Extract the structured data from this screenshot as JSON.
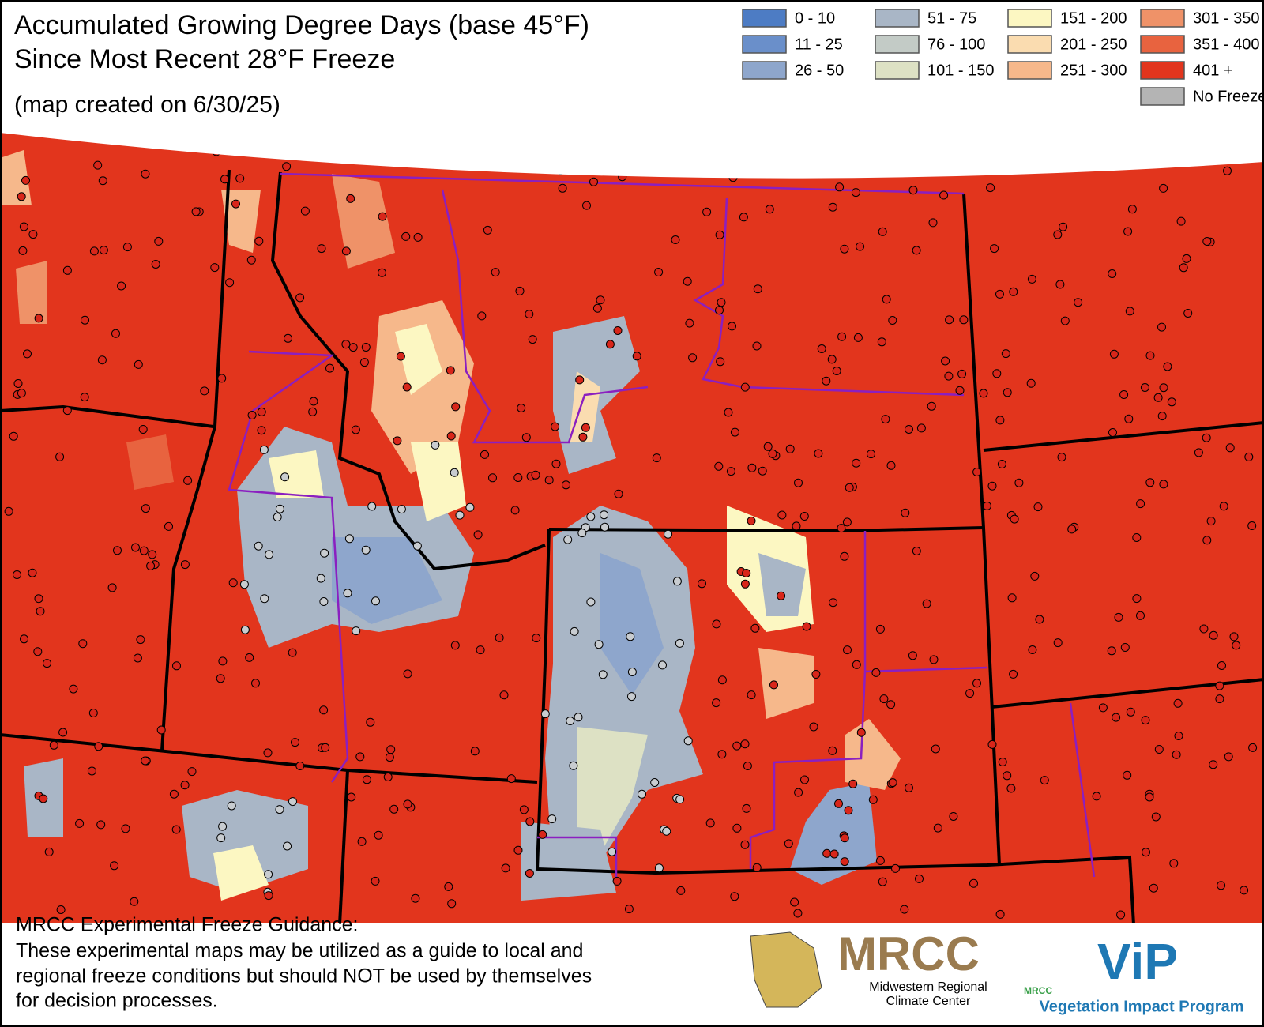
{
  "header": {
    "title_lines": [
      "Accumulated Growing Degree Days (base 45°F)",
      "Since Most Recent 28°F Freeze"
    ],
    "subtitle": "(map created on 6/30/25)"
  },
  "legend": [
    {
      "label": "0 - 10",
      "color": "#4d7cc4"
    },
    {
      "label": "11 - 25",
      "color": "#6a8fca"
    },
    {
      "label": "26 - 50",
      "color": "#8ea6cc"
    },
    {
      "label": "51 - 75",
      "color": "#a9b6c6"
    },
    {
      "label": "76 - 100",
      "color": "#c3cbc6"
    },
    {
      "label": "101 - 150",
      "color": "#dde1c4"
    },
    {
      "label": "151 - 200",
      "color": "#fcf7c2"
    },
    {
      "label": "201 - 250",
      "color": "#fadcb0"
    },
    {
      "label": "251 - 300",
      "color": "#f6b88b"
    },
    {
      "label": "301 - 350",
      "color": "#ef9268"
    },
    {
      "label": "351 - 400",
      "color": "#e8633f"
    },
    {
      "label": "401 +",
      "color": "#e2351d"
    },
    {
      "label": "No Freeze",
      "color": "#b4b4b4"
    }
  ],
  "footer": {
    "heading": "MRCC Experimental Freeze Guidance:",
    "lines": [
      "These experimental maps may be utilized as a guide to local and",
      "regional freeze conditions but should NOT be used by themselves",
      "for decision processes."
    ]
  },
  "logos": {
    "mrcc": "MRCC",
    "mrcc_name_lines": [
      "Midwestern Regional",
      "Climate Center"
    ],
    "vip_small": "MRCC",
    "vip": "ViP",
    "vip_name": "Vegetation Impact Program"
  }
}
